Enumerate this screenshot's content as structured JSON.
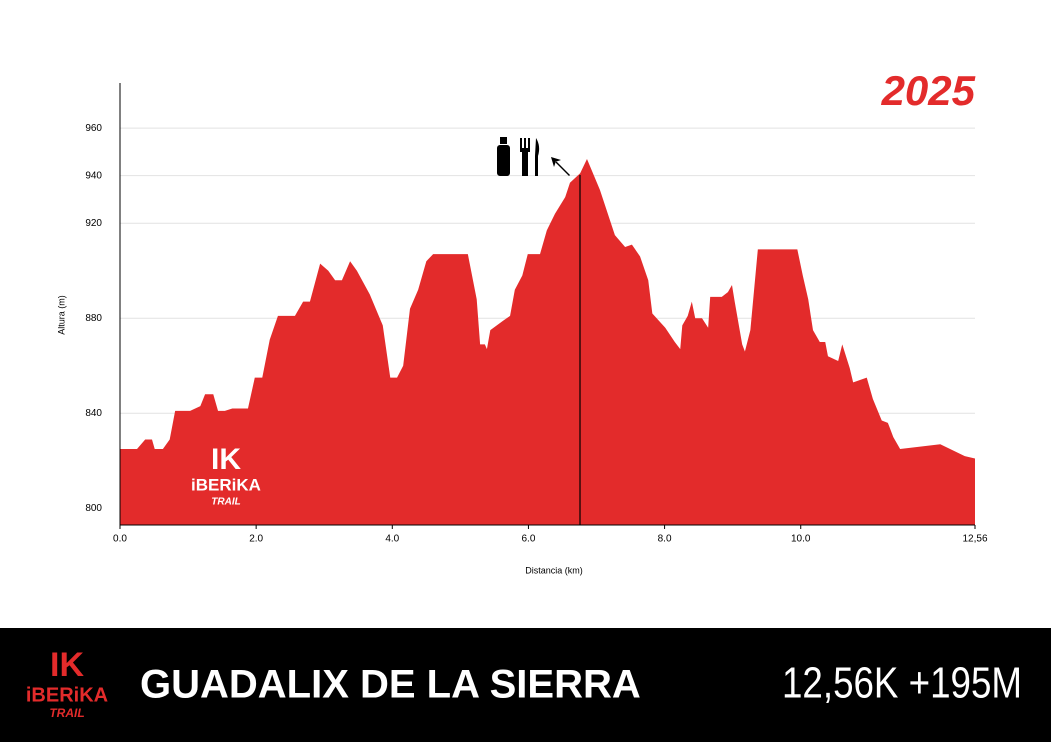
{
  "chart_data": {
    "type": "area",
    "year": "2025",
    "xlabel": "Distancia (km)",
    "ylabel": "Altura (m)",
    "color": "#e32b2b",
    "x": [
      0,
      0.25,
      0.37,
      0.47,
      0.51,
      0.63,
      0.73,
      0.81,
      1.03,
      1.18,
      1.25,
      1.37,
      1.44,
      1.54,
      1.65,
      1.88,
      1.98,
      2.09,
      2.2,
      2.32,
      2.57,
      2.69,
      2.79,
      2.94,
      3.06,
      3.16,
      3.26,
      3.38,
      3.48,
      3.67,
      3.86,
      3.97,
      4.07,
      4.16,
      4.26,
      4.38,
      4.5,
      4.6,
      5.11,
      5.24,
      5.29,
      5.36,
      5.39,
      5.44,
      5.63,
      5.73,
      5.8,
      5.91,
      5.99,
      6.17,
      6.27,
      6.39,
      6.54,
      6.61,
      6.76,
      6.86,
      7.05,
      7.27,
      7.42,
      7.52,
      7.64,
      7.76,
      7.82,
      8.01,
      8.15,
      8.23,
      8.26,
      8.34,
      8.4,
      8.45,
      8.55,
      8.64,
      8.67,
      8.75,
      8.84,
      8.93,
      8.99,
      9.03,
      9.14,
      9.18,
      9.26,
      9.37,
      9.48,
      9.95,
      10.03,
      10.11,
      10.18,
      10.28,
      10.36,
      10.4,
      10.55,
      10.61,
      10.72,
      10.77,
      10.87,
      10.97,
      11.06,
      11.19,
      11.28,
      11.36,
      11.46,
      12.05,
      12.41,
      12.56
    ],
    "values": [
      825,
      825,
      829,
      829,
      825,
      825,
      829,
      841,
      841,
      843,
      848,
      848,
      841,
      841,
      842,
      842,
      855,
      855,
      871,
      881,
      881,
      887,
      887,
      903,
      900,
      896,
      896,
      904,
      900,
      890,
      877,
      855,
      855,
      860,
      884,
      892,
      904,
      907,
      907,
      888,
      869,
      869,
      867,
      875,
      879,
      881,
      892,
      898,
      907,
      907,
      917,
      924,
      931,
      937,
      941,
      947,
      934,
      915,
      910,
      911,
      906,
      896,
      882,
      876,
      870,
      867,
      877,
      881,
      887,
      880,
      880,
      876,
      889,
      889,
      889,
      891,
      894,
      887,
      869,
      866,
      875,
      909,
      909,
      909,
      898,
      888,
      875,
      870,
      870,
      864,
      862,
      869,
      859,
      853,
      854,
      855,
      846,
      837,
      836,
      830,
      825,
      827,
      822,
      821
    ],
    "xlim": [
      0,
      12.56
    ],
    "ylim": [
      793,
      979
    ],
    "xticks": [
      {
        "value": 0,
        "label": "0.0"
      },
      {
        "value": 2,
        "label": "2.0"
      },
      {
        "value": 4,
        "label": "4.0"
      },
      {
        "value": 6,
        "label": "6.0"
      },
      {
        "value": 8,
        "label": "8.0"
      },
      {
        "value": 10,
        "label": "10.0"
      },
      {
        "value": 12.56,
        "label": "12,56"
      }
    ],
    "yticks": [
      800,
      840,
      880,
      920,
      940,
      960
    ],
    "grid": true
  },
  "logo": {
    "mark": "IK",
    "name": "iBERiKA",
    "tagline": "TRAIL"
  },
  "footer": {
    "title": "GUADALIX DE LA SIERRA",
    "stats": "12,56K +195M"
  }
}
